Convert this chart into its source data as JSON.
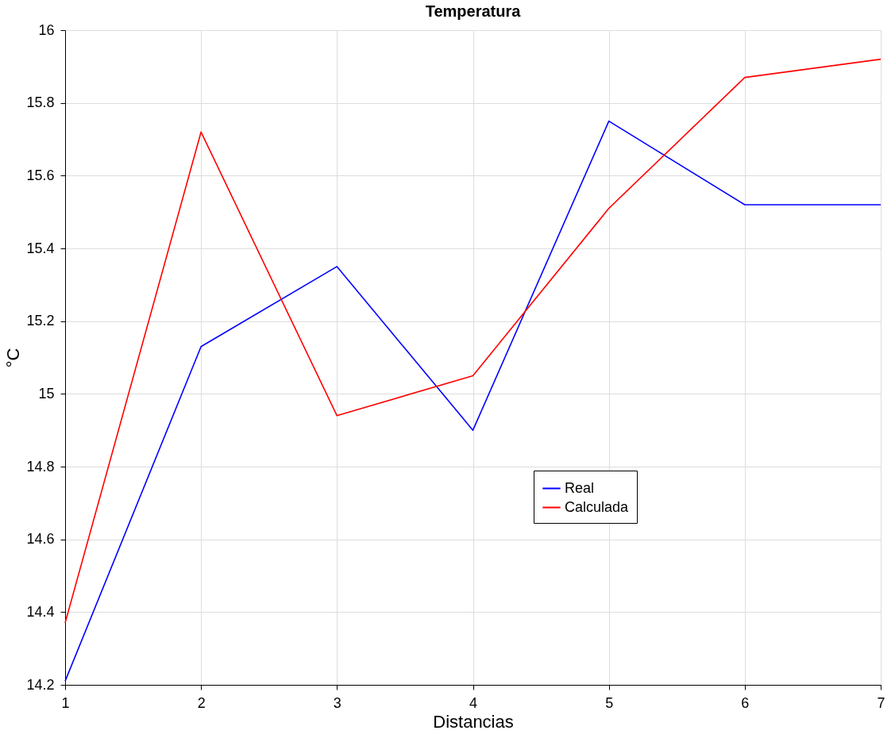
{
  "chart_data": {
    "type": "line",
    "title": "Temperatura",
    "xlabel": "Distancias",
    "ylabel": "°C",
    "x": [
      1,
      2,
      3,
      4,
      5,
      6,
      7
    ],
    "series": [
      {
        "name": "Real",
        "color": "#0000ff",
        "values": [
          14.21,
          15.13,
          15.35,
          14.9,
          15.75,
          15.52,
          15.52
        ]
      },
      {
        "name": "Calculada",
        "color": "#ff0000",
        "values": [
          14.37,
          15.72,
          14.94,
          15.05,
          15.51,
          15.87,
          15.92
        ]
      }
    ],
    "xlim": [
      1,
      7
    ],
    "xticks": [
      1,
      2,
      3,
      4,
      5,
      6,
      7
    ],
    "ylim": [
      14.2,
      16
    ],
    "yticks": [
      14.2,
      14.4,
      14.6,
      14.8,
      15,
      15.2,
      15.4,
      15.6,
      15.8,
      16
    ],
    "grid": true,
    "legend": "bottom right",
    "marker": "none",
    "line_style": "solid"
  }
}
